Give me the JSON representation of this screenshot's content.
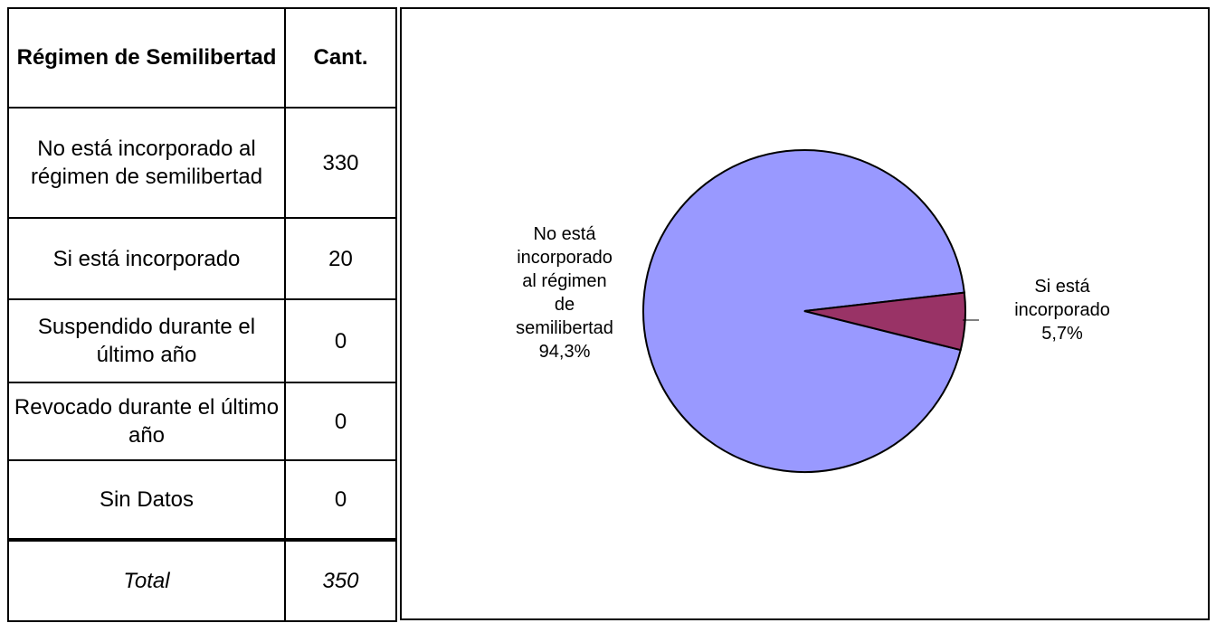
{
  "table": {
    "header": {
      "category": "Régimen de Semilibertad",
      "count": "Cant."
    },
    "rows": [
      {
        "label": "No está incorporado al régimen de semilibertad",
        "value": "330"
      },
      {
        "label": "Si está incorporado",
        "value": "20"
      },
      {
        "label": "Suspendido durante el último año",
        "value": "0"
      },
      {
        "label": "Revocado durante el último año",
        "value": "0"
      },
      {
        "label": "Sin Datos",
        "value": "0"
      }
    ],
    "total": {
      "label": "Total",
      "value": "350"
    }
  },
  "chart_data": {
    "type": "pie",
    "title": "",
    "slices": [
      {
        "label": "No está incorporado al régimen de semilibertad",
        "value": 330,
        "percent_label": "94,3%",
        "color": "#9999ff"
      },
      {
        "label": "Si está incorporado",
        "value": 20,
        "percent_label": "5,7%",
        "color": "#993366"
      }
    ],
    "labels_text": {
      "slice0": [
        "No está",
        "incorporado",
        "al régimen",
        "de",
        "semilibertad",
        "94,3%"
      ],
      "slice1": [
        "Si está",
        "incorporado",
        "5,7%"
      ]
    }
  }
}
